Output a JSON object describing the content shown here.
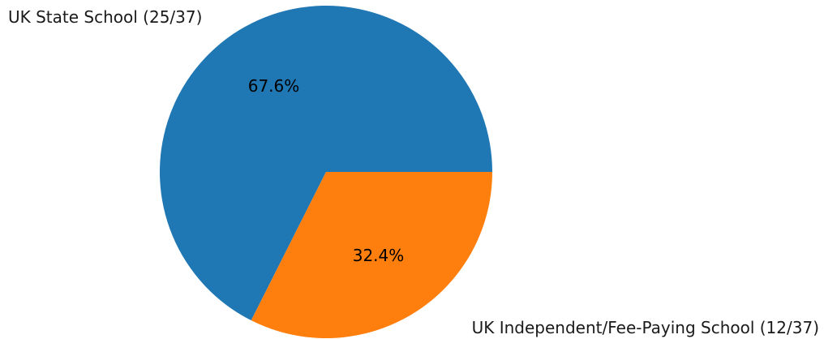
{
  "chart_data": {
    "type": "pie",
    "title": "",
    "slices": [
      {
        "label": "UK State School (25/37)",
        "value": 25,
        "percent_label": "67.6%",
        "color": "#1f77b4"
      },
      {
        "label": "UK Independent/Fee-Paying School (12/37)",
        "value": 12,
        "percent_label": "32.4%",
        "color": "#ff7f0e"
      }
    ],
    "start_angle_deg": 0,
    "direction": "counterclockwise",
    "legend": "none"
  }
}
